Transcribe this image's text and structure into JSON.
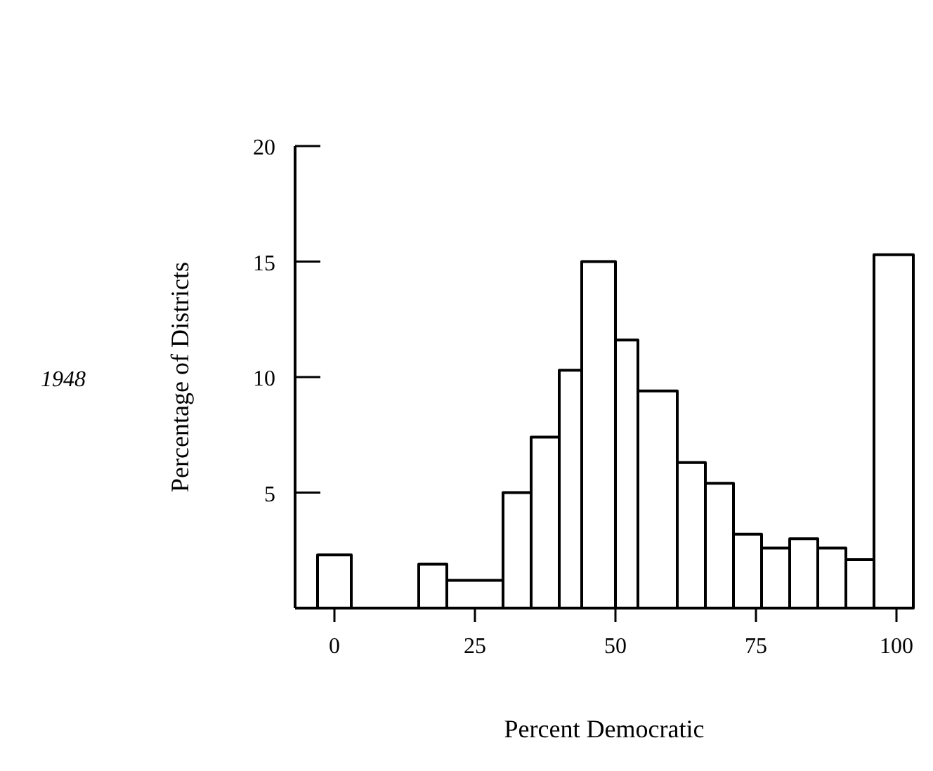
{
  "chart_data": {
    "type": "histogram",
    "xlabel": "Percent Democratic",
    "ylabel": "Percentage of Districts",
    "annotations": [
      "1948"
    ],
    "bins": [
      -3,
      3,
      15,
      20,
      30,
      35,
      40,
      44,
      50,
      54,
      61,
      66,
      71,
      76,
      81,
      86,
      91,
      96,
      103
    ],
    "values": [
      2.3,
      0,
      1.9,
      1.2,
      5,
      7.4,
      10.3,
      15,
      11.6,
      9.4,
      6.3,
      5.4,
      3.2,
      2.6,
      3,
      2.6,
      2.1,
      15.3
    ],
    "color": "#000000",
    "xlim": [
      -7,
      103
    ],
    "xticks": [
      0,
      25,
      50,
      75,
      100
    ],
    "ylim": [
      0,
      20
    ],
    "yticks": [
      5,
      10,
      15,
      20
    ],
    "grid": false
  }
}
